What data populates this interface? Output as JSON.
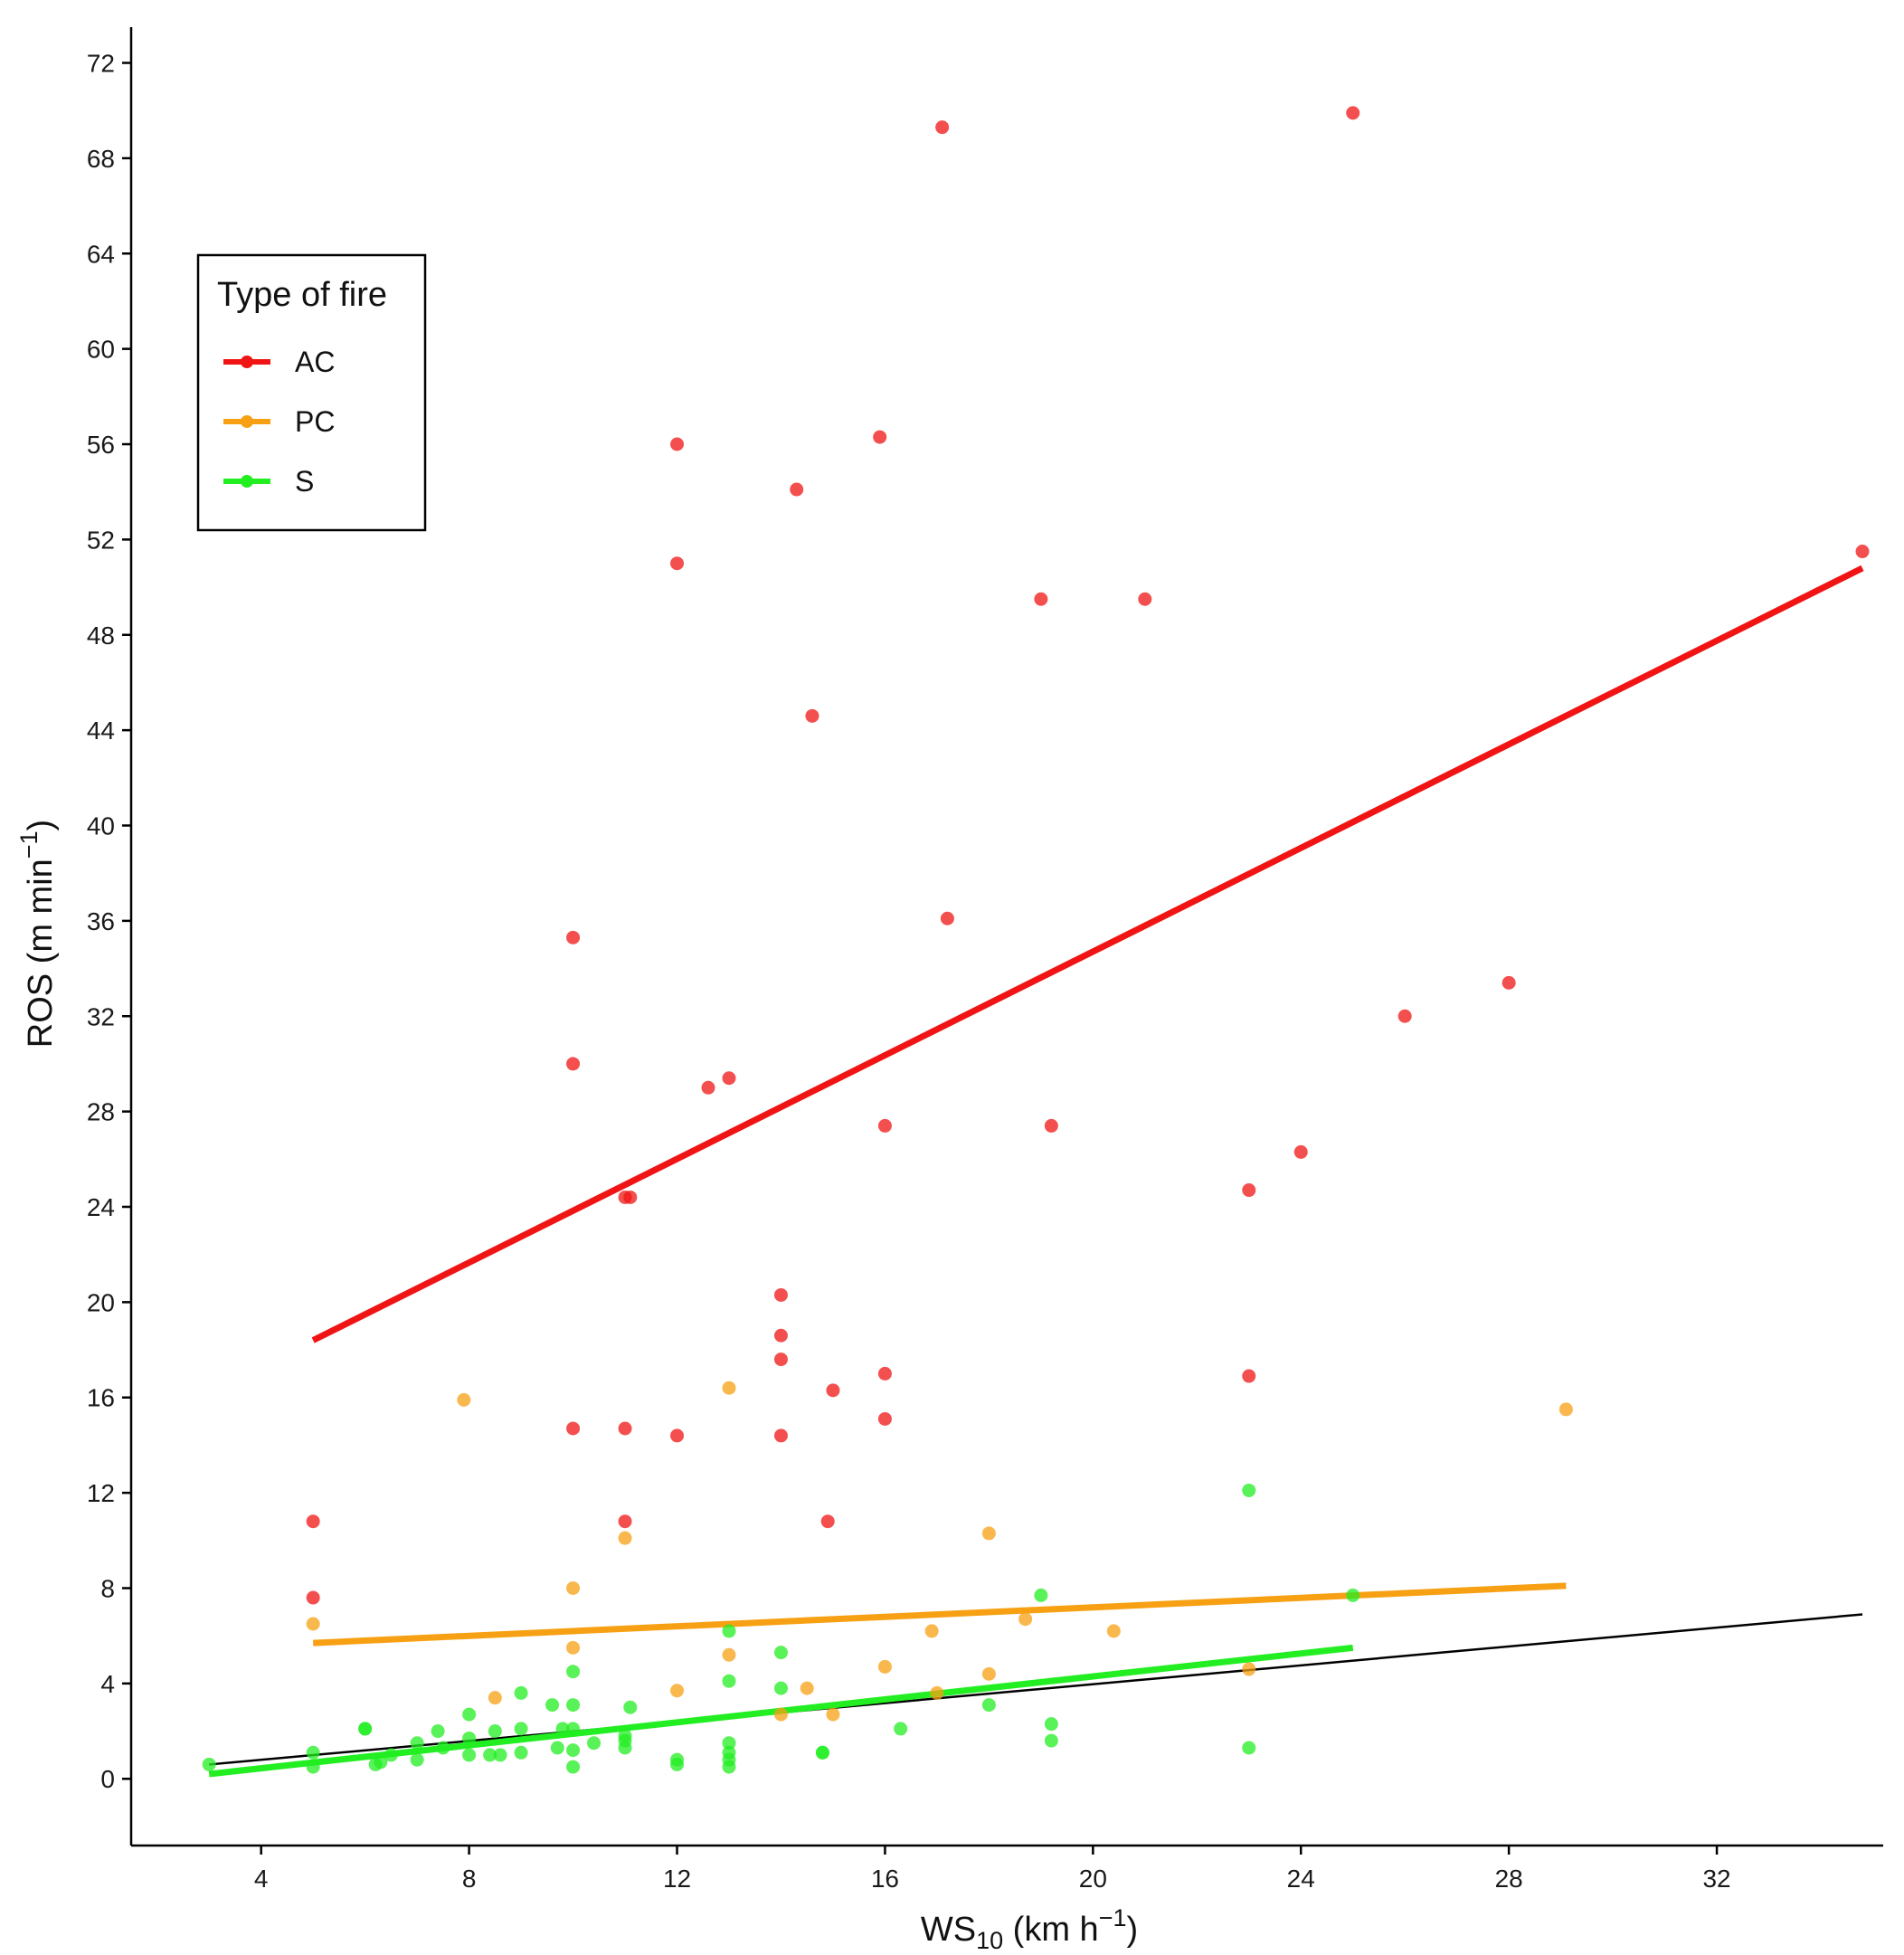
{
  "chart_data": {
    "type": "scatter",
    "x_axis": {
      "label_main": "WS",
      "label_sub": "10",
      "label_units_prefix": " (km h",
      "label_units_sup": "−1",
      "label_units_suffix": ")",
      "range": [
        1.5,
        35.2
      ],
      "ticks": [
        4,
        8,
        12,
        16,
        20,
        24,
        28,
        32
      ]
    },
    "y_axis": {
      "label_main": "ROS (m min",
      "label_sup": "−1",
      "label_suffix": ")",
      "range": [
        -2.8,
        73.5
      ],
      "ticks": [
        0,
        4,
        8,
        12,
        16,
        20,
        24,
        28,
        32,
        36,
        40,
        44,
        48,
        52,
        56,
        60,
        64,
        68,
        72
      ]
    },
    "grid": false,
    "legend": {
      "title": "Type of fire",
      "placement": "top-left"
    },
    "series": [
      {
        "name": "AC",
        "color": "#f01414",
        "points": [
          [
            5,
            10.8
          ],
          [
            5,
            7.6
          ],
          [
            10,
            35.3
          ],
          [
            10,
            30
          ],
          [
            10,
            14.7
          ],
          [
            11,
            24.4
          ],
          [
            11.1,
            24.4
          ],
          [
            11,
            14.7
          ],
          [
            11,
            10.8
          ],
          [
            12,
            56
          ],
          [
            12,
            51
          ],
          [
            12,
            14.4
          ],
          [
            12.6,
            29
          ],
          [
            13,
            29.4
          ],
          [
            14,
            20.3
          ],
          [
            14,
            18.6
          ],
          [
            14,
            17.6
          ],
          [
            14,
            14.4
          ],
          [
            14.3,
            54.1
          ],
          [
            14.6,
            44.6
          ],
          [
            14.9,
            10.8
          ],
          [
            15,
            16.3
          ],
          [
            15.9,
            56.3
          ],
          [
            16,
            27.4
          ],
          [
            16,
            17
          ],
          [
            16,
            15.1
          ],
          [
            17.1,
            69.3
          ],
          [
            17.2,
            36.1
          ],
          [
            19,
            49.5
          ],
          [
            19.2,
            27.4
          ],
          [
            21,
            49.5
          ],
          [
            23,
            24.7
          ],
          [
            23,
            16.9
          ],
          [
            24,
            26.3
          ],
          [
            25,
            69.9
          ],
          [
            26,
            32
          ],
          [
            28,
            33.4
          ],
          [
            34.8,
            51.5
          ]
        ],
        "fit": [
          [
            5,
            18.4
          ],
          [
            34.8,
            50.8
          ]
        ]
      },
      {
        "name": "PC",
        "color": "#f7a013",
        "points": [
          [
            5,
            6.5
          ],
          [
            7.9,
            15.9
          ],
          [
            8.5,
            3.4
          ],
          [
            10,
            8
          ],
          [
            10,
            5.5
          ],
          [
            11,
            10.1
          ],
          [
            12,
            3.7
          ],
          [
            13,
            16.4
          ],
          [
            13,
            5.2
          ],
          [
            14,
            2.7
          ],
          [
            14.5,
            3.8
          ],
          [
            15,
            2.7
          ],
          [
            16,
            4.7
          ],
          [
            16.9,
            6.2
          ],
          [
            17,
            3.6
          ],
          [
            18,
            10.3
          ],
          [
            18,
            4.4
          ],
          [
            18.7,
            6.7
          ],
          [
            20.4,
            6.2
          ],
          [
            23,
            4.6
          ],
          [
            29.1,
            15.5
          ]
        ],
        "fit": [
          [
            5,
            5.7
          ],
          [
            29.1,
            8.1
          ]
        ]
      },
      {
        "name": "S",
        "color": "#22ee22",
        "points": [
          [
            3,
            0.6
          ],
          [
            5,
            1.1
          ],
          [
            5,
            0.5
          ],
          [
            6,
            2.1
          ],
          [
            6,
            2.1
          ],
          [
            6.2,
            0.6
          ],
          [
            6.3,
            0.7
          ],
          [
            6.5,
            1.0
          ],
          [
            7,
            1.5
          ],
          [
            7,
            0.8
          ],
          [
            7.4,
            2.0
          ],
          [
            7.5,
            1.3
          ],
          [
            8,
            2.7
          ],
          [
            8,
            1.7
          ],
          [
            8,
            1.0
          ],
          [
            8.5,
            2.0
          ],
          [
            8.4,
            1.0
          ],
          [
            8.6,
            1.0
          ],
          [
            9,
            3.6
          ],
          [
            9,
            2.1
          ],
          [
            9,
            1.1
          ],
          [
            9.6,
            3.1
          ],
          [
            9.7,
            1.3
          ],
          [
            9.8,
            2.1
          ],
          [
            10,
            4.5
          ],
          [
            10,
            3.1
          ],
          [
            10,
            2.1
          ],
          [
            10,
            1.2
          ],
          [
            10,
            0.5
          ],
          [
            10.4,
            1.5
          ],
          [
            11,
            1.8
          ],
          [
            11,
            1.3
          ],
          [
            11,
            1.6
          ],
          [
            11.1,
            3.0
          ],
          [
            12,
            0.8
          ],
          [
            12,
            0.6
          ],
          [
            13,
            6.2
          ],
          [
            13,
            4.1
          ],
          [
            13,
            1.5
          ],
          [
            13,
            1.1
          ],
          [
            13,
            0.8
          ],
          [
            13,
            0.5
          ],
          [
            14,
            5.3
          ],
          [
            14,
            3.8
          ],
          [
            14.8,
            1.1
          ],
          [
            14.8,
            1.1
          ],
          [
            16.3,
            2.1
          ],
          [
            18,
            3.1
          ],
          [
            19,
            7.7
          ],
          [
            19.2,
            2.3
          ],
          [
            19.2,
            1.6
          ],
          [
            23,
            12.1
          ],
          [
            23,
            1.3
          ],
          [
            25,
            7.7
          ]
        ],
        "fit": [
          [
            3,
            0.2
          ],
          [
            25,
            5.5
          ]
        ]
      }
    ],
    "overall_fit": {
      "color": "#000000",
      "points": [
        [
          3,
          0.6
        ],
        [
          34.8,
          6.9
        ]
      ]
    }
  }
}
